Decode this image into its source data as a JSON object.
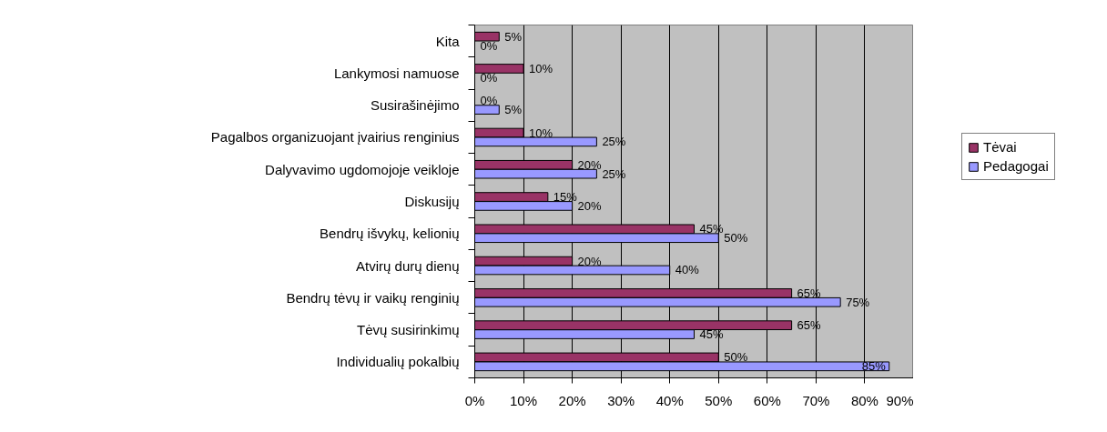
{
  "chart_data": {
    "type": "bar",
    "orientation": "horizontal",
    "categories": [
      "Kita",
      "Lankymosi namuose",
      "Susirašinėjimo",
      "Pagalbos organizuojant įvairius renginius",
      "Dalyvavimo ugdomojoje veikloje",
      "Diskusijų",
      "Bendrų išvykų, kelionių",
      "Atvirų durų dienų",
      "Bendrų tėvų ir vaikų renginių",
      "Tėvų susirinkimų",
      "Individualių pokalbių"
    ],
    "series": [
      {
        "name": "Tėvai",
        "color": "#993366",
        "values": [
          5,
          10,
          0,
          10,
          20,
          15,
          45,
          20,
          65,
          65,
          50
        ],
        "value_labels": [
          "5%",
          "10%",
          "0%",
          "10%",
          "20%",
          "15%",
          "45%",
          "20%",
          "65%",
          "65%",
          "50%"
        ]
      },
      {
        "name": "Pedagogai",
        "color": "#9999ff",
        "values": [
          0,
          0,
          5,
          25,
          25,
          20,
          50,
          40,
          75,
          45,
          85
        ],
        "value_labels": [
          "0%",
          "0%",
          "5%",
          "25%",
          "25%",
          "20%",
          "50%",
          "40%",
          "75%",
          "45%",
          "85%"
        ]
      }
    ],
    "xlim": [
      0,
      90
    ],
    "xticks": [
      {
        "value": 0,
        "label": "0%"
      },
      {
        "value": 10,
        "label": "10%"
      },
      {
        "value": 20,
        "label": "20%"
      },
      {
        "value": 30,
        "label": "30%"
      },
      {
        "value": 40,
        "label": "40%"
      },
      {
        "value": 50,
        "label": "50%"
      },
      {
        "value": 60,
        "label": "60%"
      },
      {
        "value": 70,
        "label": "70%"
      },
      {
        "value": 80,
        "label": "80%"
      },
      {
        "value": 90,
        "label": "90%"
      }
    ],
    "grid": "x",
    "legend": "right"
  }
}
